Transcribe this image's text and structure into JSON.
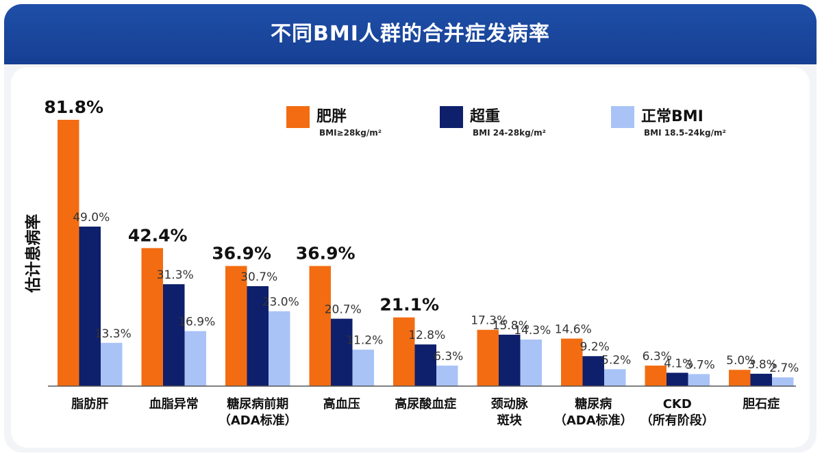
{
  "title": "不同BMI人群的合并症发病率",
  "colors": {
    "obese": "#f36c12",
    "overweight": "#0e1f6b",
    "normal": "#a9c3f7",
    "banner": "#1a469c"
  },
  "legend": [
    {
      "name": "肥胖",
      "sub": "BMI≥28kg/m²"
    },
    {
      "name": "超重",
      "sub": "BMI 24-28kg/m²"
    },
    {
      "name": "正常BMI",
      "sub": "BMI 18.5-24kg/m²"
    }
  ],
  "chart_data": {
    "type": "bar",
    "title": "不同BMI人群的合并症发病率",
    "ylabel": "估计患病率",
    "xlabel": "",
    "ylim": [
      0,
      85
    ],
    "grid": false,
    "legend_position": "top-right",
    "categories": [
      {
        "line1": "脂肪肝",
        "line2": ""
      },
      {
        "line1": "血脂异常",
        "line2": ""
      },
      {
        "line1": "糖尿病前期",
        "line2": "（ADA标准）"
      },
      {
        "line1": "高血压",
        "line2": ""
      },
      {
        "line1": "高尿酸血症",
        "line2": ""
      },
      {
        "line1": "颈动脉",
        "line2": "斑块"
      },
      {
        "line1": "糖尿病",
        "line2": "（ADA标准）"
      },
      {
        "line1": "CKD",
        "line2": "（所有阶段）"
      },
      {
        "line1": "胆石症",
        "line2": ""
      }
    ],
    "series": [
      {
        "name": "肥胖",
        "values": [
          81.8,
          42.4,
          36.9,
          36.9,
          21.1,
          17.3,
          14.6,
          6.3,
          5.0
        ],
        "labels": [
          "81.8%",
          "42.4%",
          "36.9%",
          "36.9%",
          "21.1%",
          "17.3%",
          "14.6%",
          "6.3%",
          "5.0%"
        ]
      },
      {
        "name": "超重",
        "values": [
          49.0,
          31.3,
          30.7,
          20.7,
          12.8,
          15.8,
          9.2,
          4.1,
          3.8
        ],
        "labels": [
          "49.0%",
          "31.3%",
          "30.7%",
          "20.7%",
          "12.8%",
          "15.8%",
          "9.2%",
          "4.1%",
          "3.8%"
        ]
      },
      {
        "name": "正常BMI",
        "values": [
          13.3,
          16.9,
          23.0,
          11.2,
          6.3,
          14.3,
          5.2,
          3.7,
          2.7
        ],
        "labels": [
          "13.3%",
          "16.9%",
          "23.0%",
          "11.2%",
          "6.3%",
          "14.3%",
          "5.2%",
          "3.7%",
          "2.7%"
        ]
      }
    ]
  }
}
